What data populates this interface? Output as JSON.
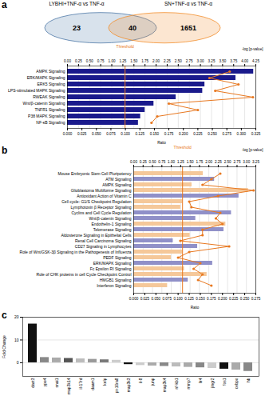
{
  "chart_data": [
    {
      "type": "venn",
      "title": "a",
      "categories": [
        "LYBHI+TNF-α vs TNF-α",
        null,
        "SN+TNF-α vs TNF-α"
      ],
      "values": [
        23,
        40,
        1651
      ]
    },
    {
      "type": "bar",
      "orientation": "horizontal",
      "categories": [
        "AMPK Signaling",
        "ERK/MAPK Signaling",
        "ERK5 Signaling",
        "LPS-stimulated MAPK Signaling",
        "RWEAK Signaling",
        "Wnt/β-catenin Signaling",
        "TNFR1 Signaling",
        "P38 MAPK Signaling",
        "NF-κB Signaling"
      ],
      "xlabel": "-log [p-value]",
      "x2label": "Ratio",
      "xlim": [
        0,
        4.25
      ],
      "xticks": [
        {
          "value": 0,
          "label": "0.00"
        },
        0.25,
        {
          "value": 0.5,
          "label": "0.50"
        },
        0.75,
        {
          "value": 1,
          "label": "1.00"
        },
        1.25,
        {
          "value": 1.5,
          "label": "1.50"
        },
        1.75,
        {
          "value": 2,
          "label": "2.00"
        },
        2.25,
        {
          "value": 2.5,
          "label": "2.50"
        },
        2.75,
        {
          "value": 3,
          "label": "3.00"
        },
        3.25,
        {
          "value": 3.5,
          "label": "3.50"
        },
        3.75,
        {
          "value": 4,
          "label": "4.00"
        },
        4.25
      ],
      "x2lim": [
        0,
        0.325
      ],
      "x2ticks": [
        {
          "value": 0,
          "label": "0.000"
        },
        0.025,
        {
          "value": 0.05,
          "label": "0.050"
        },
        0.075,
        {
          "value": 0.1,
          "label": "0.100"
        },
        0.125,
        {
          "value": 0.15,
          "label": "0.150"
        },
        0.175,
        {
          "value": 0.2,
          "label": "0.200"
        },
        0.225,
        {
          "value": 0.25,
          "label": "0.250"
        },
        0.275,
        {
          "value": 0.3,
          "label": "0.300"
        },
        0.325
      ],
      "grid": true,
      "series": [
        {
          "type": "bar",
          "color": "#1a1a8c",
          "values": [
            4.2,
            3.8,
            3.1,
            3.05,
            2.45,
            1.95,
            1.75,
            1.65,
            1.6
          ]
        },
        {
          "type": "line",
          "marker": "o",
          "axis": "x2",
          "color": "#e87820",
          "values": [
            0.28,
            0.245,
            0.295,
            0.255,
            0.32,
            0.175,
            0.225,
            0.155,
            0.145
          ]
        }
      ],
      "annotations": [
        {
          "text": "Threshold",
          "x": 1.3,
          "color": "#e87820"
        }
      ]
    },
    {
      "type": "bar",
      "title": "b",
      "orientation": "horizontal",
      "categories": [
        "Mouse Embryonic Stem Cell Pluripotency",
        "ATM Signaling",
        "AMPK Signaling",
        "Glioblastoma Multiforme Signaling",
        "Antioxidant Action of Vitamin C",
        "Cell cycle: G1/S Checkpoint Regulation",
        "Lymphotoxin β Receptor Signaling",
        "Cyclins and Cell Cycle Regulation",
        "Wnt/β-catenin Signaling",
        "Endothelin-1 Signaling",
        "Telomerase Signaling",
        "Aldosterone Signaling in Epithelial Cells",
        "Renal Cell Carcinoma Signaling",
        "CD27 Signaling in Lymphocytes",
        "Role of Wnt/GSK-3β Signaling in the Pathogenesis of Influenza",
        "PEDF Signaling",
        "ERK/MAPK Signaling",
        "Fc Epsilon RI Signaling",
        "Role of CHK proteins in cell Cycle Checkpoint Control",
        "HMGB1 Signaling",
        "Interferon Signaling"
      ],
      "xlabel": "-log [p-value]",
      "x2label": "Ratio",
      "xlim": [
        0,
        3.25
      ],
      "xticks": [
        {
          "value": 0,
          "label": "0.00"
        },
        0.25,
        {
          "value": 0.5,
          "label": "0.50"
        },
        0.75,
        {
          "value": 1,
          "label": "1.00"
        },
        1.25,
        {
          "value": 1.5,
          "label": "1.50"
        },
        1.75,
        {
          "value": 2,
          "label": "2.00"
        },
        2.25,
        {
          "value": 2.5,
          "label": "2.50"
        },
        2.75,
        {
          "value": 3,
          "label": "3.00"
        },
        3.25
      ],
      "x2lim": [
        0,
        0.275
      ],
      "x2ticks": [
        {
          "value": 0,
          "label": "0.000"
        },
        0.025,
        {
          "value": 0.05,
          "label": "0.050"
        },
        0.075,
        {
          "value": 0.1,
          "label": "0.100"
        },
        0.125,
        {
          "value": 0.15,
          "label": "0.150"
        },
        0.175,
        {
          "value": 0.2,
          "label": "0.200"
        },
        0.225,
        {
          "value": 0.25,
          "label": "0.250"
        },
        0.275
      ],
      "grid": true,
      "series": [
        {
          "type": "bar",
          "values": [
            1.85,
            2.15,
            1.55,
            3.05,
            2.8,
            1.3,
            1.25,
            2.6,
            1.65,
            2.45,
            2.4,
            1.5,
            1.05,
            1.7,
            1.3,
            1.0,
            2.1,
            1.35,
            1.95,
            1.45,
            0.9
          ],
          "colors": [
            "#f5c89a",
            "#9090c8",
            "#f5c89a",
            "#f5c89a",
            "#9090c8",
            "#f5c89a",
            "#f5c89a",
            "#9090c8",
            "#9090c8",
            "#f5c89a",
            "#9090c8",
            "#f5c89a",
            "#9090c8",
            "#9090c8",
            "#f5c89a",
            "#f5c89a",
            "#9090c8",
            "#f5c89a",
            "#f5c89a",
            "#9090c8",
            "#f5c89a"
          ]
        },
        {
          "type": "line",
          "marker": "o",
          "axis": "x2",
          "color": "#e87820",
          "values": [
            0.195,
            0.175,
            0.155,
            0.27,
            0.19,
            0.125,
            0.13,
            0.195,
            0.185,
            0.2,
            0.155,
            0.155,
            0.105,
            0.215,
            0.125,
            0.1,
            0.15,
            0.135,
            0.155,
            0.145,
            0.175
          ]
        }
      ],
      "annotations": [
        {
          "text": "Threshold",
          "x": 1.3,
          "color": "#e87820"
        }
      ]
    },
    {
      "type": "bar",
      "title": "c",
      "categories": [
        "dact3",
        "ype4",
        "snai1",
        "map3k14",
        "il-17rd",
        "daam1",
        "kelp",
        "pt-10ra8",
        "map3k3",
        "il-8",
        "junp",
        "map3k4",
        "nf-kb1",
        "mmp7",
        "lir4",
        "jingr2",
        "fos1",
        "cebpo",
        "hb"
      ],
      "values": [
        17.0,
        2.3,
        2.1,
        1.9,
        1.7,
        1.5,
        1.3,
        1.1,
        -0.8,
        -1.2,
        -1.4,
        -1.6,
        -1.8,
        -2.0,
        -2.2,
        -2.5,
        -2.8,
        -3.2,
        -3.8
      ],
      "colors": [
        "#111111",
        "#888888",
        "#aaaaaa",
        "#555555",
        "#bbbbbb",
        "#999999",
        "#777777",
        "#cccccc",
        "#111111",
        "#cccccc",
        "#aaaaaa",
        "#888888",
        "#bbbbbb",
        "#aaaaaa",
        "#888888",
        "#cccccc",
        "#111111",
        "#aaaaaa",
        "#888888"
      ],
      "ylabel": "Fold Change",
      "ylim": [
        -6,
        20
      ],
      "yticks": [
        0,
        10,
        20
      ],
      "grid": true
    }
  ]
}
